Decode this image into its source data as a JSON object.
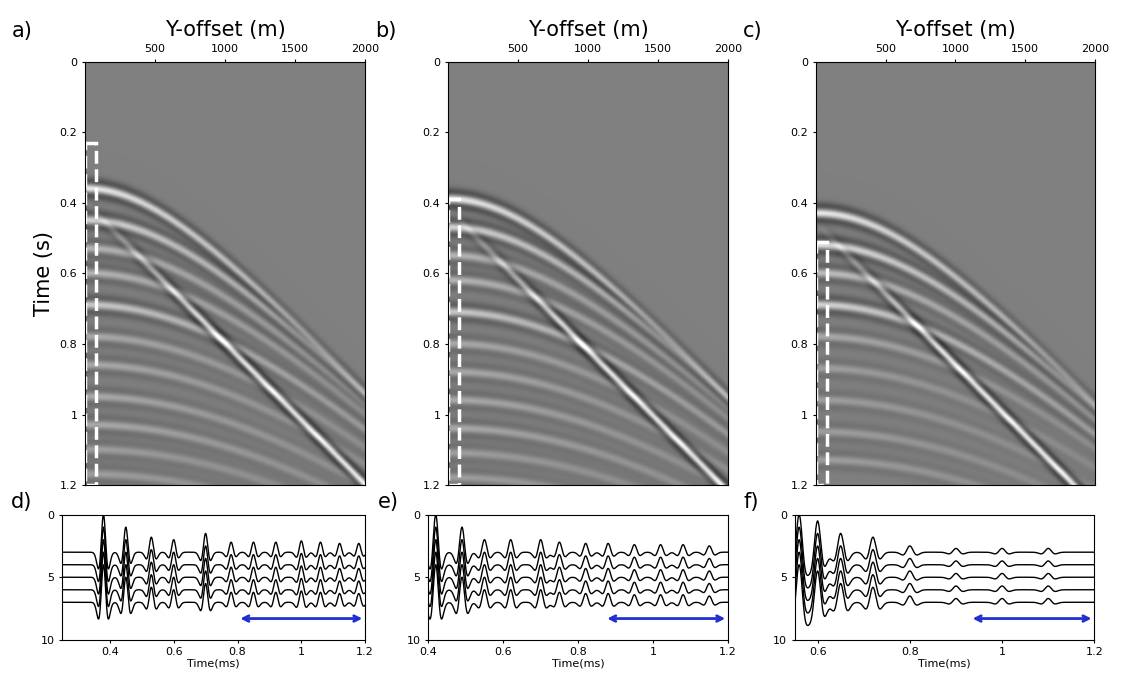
{
  "chart_data": [
    {
      "type": "image",
      "panel": "a)",
      "xlabel": "Y-offset (m)",
      "ylabel": "Time (s)",
      "xlim": [
        0,
        2000
      ],
      "ylim": [
        1.2,
        0
      ],
      "xticks": [
        500,
        1000,
        1500,
        2000
      ],
      "yticks": [
        0,
        0.2,
        0.4,
        0.6,
        0.8,
        1,
        1.2
      ],
      "reflections": [
        {
          "t0": 0.36,
          "v": 2300,
          "amp": 1.0
        },
        {
          "t0": 0.45,
          "v": 2400,
          "amp": 0.8
        },
        {
          "t0": 0.53,
          "v": 2450,
          "amp": 0.5
        },
        {
          "t0": 0.6,
          "v": 2500,
          "amp": 0.5
        },
        {
          "t0": 0.69,
          "v": 2550,
          "amp": 0.7
        },
        {
          "t0": 0.78,
          "v": 2600,
          "amp": 0.4
        },
        {
          "t0": 0.86,
          "v": 2650,
          "amp": 0.4
        },
        {
          "t0": 0.95,
          "v": 2700,
          "amp": 0.4
        },
        {
          "t0": 1.03,
          "v": 2750,
          "amp": 0.4
        },
        {
          "t0": 1.1,
          "v": 2800,
          "amp": 0.3
        },
        {
          "t0": 1.17,
          "v": 2850,
          "amp": 0.3
        }
      ],
      "direct_waves": [
        {
          "t0": 0.4,
          "v": 2500,
          "amp": 1.0
        }
      ],
      "window": {
        "x": [
          0,
          80
        ],
        "t": [
          0.23,
          1.2
        ],
        "color": "#ffffff"
      }
    },
    {
      "type": "image",
      "panel": "b)",
      "xlabel": "Y-offset (m)",
      "xlim": [
        0,
        2000
      ],
      "ylim": [
        1.2,
        0
      ],
      "xticks": [
        500,
        1000,
        1500,
        2000
      ],
      "yticks": [
        0,
        0.2,
        0.4,
        0.6,
        0.8,
        1,
        1.2
      ],
      "reflections": [
        {
          "t0": 0.39,
          "v": 2300,
          "amp": 1.0
        },
        {
          "t0": 0.47,
          "v": 2400,
          "amp": 0.8
        },
        {
          "t0": 0.55,
          "v": 2450,
          "amp": 0.5
        },
        {
          "t0": 0.62,
          "v": 2500,
          "amp": 0.5
        },
        {
          "t0": 0.71,
          "v": 2550,
          "amp": 0.7
        },
        {
          "t0": 0.8,
          "v": 2600,
          "amp": 0.4
        },
        {
          "t0": 0.88,
          "v": 2650,
          "amp": 0.4
        },
        {
          "t0": 0.96,
          "v": 2700,
          "amp": 0.4
        },
        {
          "t0": 1.04,
          "v": 2750,
          "amp": 0.4
        },
        {
          "t0": 1.11,
          "v": 2800,
          "amp": 0.3
        },
        {
          "t0": 1.18,
          "v": 2850,
          "amp": 0.3
        }
      ],
      "direct_waves": [
        {
          "t0": 0.42,
          "v": 2500,
          "amp": 1.0
        }
      ],
      "window": {
        "x": [
          0,
          80
        ],
        "t": [
          0.39,
          1.2
        ],
        "color": "#ffffff"
      }
    },
    {
      "type": "image",
      "panel": "c)",
      "xlabel": "Y-offset (m)",
      "xlim": [
        0,
        2000
      ],
      "ylim": [
        1.2,
        0
      ],
      "xticks": [
        500,
        1000,
        1500,
        2000
      ],
      "yticks": [
        0,
        0.2,
        0.4,
        0.6,
        0.8,
        1,
        1.2
      ],
      "reflections": [
        {
          "t0": 0.43,
          "v": 2300,
          "amp": 1.0
        },
        {
          "t0": 0.52,
          "v": 2400,
          "amp": 0.9
        },
        {
          "t0": 0.6,
          "v": 2450,
          "amp": 0.6
        },
        {
          "t0": 0.69,
          "v": 2500,
          "amp": 0.8
        },
        {
          "t0": 0.78,
          "v": 2600,
          "amp": 0.4
        },
        {
          "t0": 0.87,
          "v": 2650,
          "amp": 0.3
        },
        {
          "t0": 0.96,
          "v": 2700,
          "amp": 0.3
        },
        {
          "t0": 1.05,
          "v": 2750,
          "amp": 0.3
        },
        {
          "t0": 1.13,
          "v": 2800,
          "amp": 0.3
        }
      ],
      "direct_waves": [
        {
          "t0": 0.46,
          "v": 2500,
          "amp": 1.0
        }
      ],
      "window": {
        "x": [
          0,
          80
        ],
        "t": [
          0.51,
          1.2
        ],
        "color": "#ffffff"
      }
    },
    {
      "type": "wiggle",
      "panel": "d)",
      "xlabel": "Time(ms)",
      "color": "#000000",
      "xlim": [
        0.25,
        1.2
      ],
      "ylim": [
        10,
        0
      ],
      "xticks": [
        0.4,
        0.6,
        0.8,
        1,
        1.2
      ],
      "yticks": [
        0,
        5,
        10
      ],
      "trace_offsets": [
        3,
        4,
        5,
        6,
        7
      ],
      "events": [
        [
          0.38,
          3.0
        ],
        [
          0.45,
          2.0
        ],
        [
          0.53,
          1.2
        ],
        [
          0.6,
          1.0
        ],
        [
          0.7,
          1.5
        ],
        [
          0.78,
          0.8
        ],
        [
          0.85,
          0.8
        ],
        [
          0.92,
          0.8
        ],
        [
          1.0,
          0.9
        ],
        [
          1.06,
          0.8
        ],
        [
          1.12,
          0.7
        ],
        [
          1.18,
          0.7
        ]
      ],
      "arrow": {
        "x": [
          0.8,
          1.2
        ],
        "y": 8.3,
        "color": "#1f2fd0"
      }
    },
    {
      "type": "wiggle",
      "panel": "e)",
      "xlabel": "Time(ms)",
      "color": "#000000",
      "xlim": [
        0.4,
        1.2
      ],
      "ylim": [
        10,
        0
      ],
      "xticks": [
        0.4,
        0.6,
        0.8,
        1,
        1.2
      ],
      "yticks": [
        0,
        5,
        10
      ],
      "trace_offsets": [
        3,
        4,
        5,
        6,
        7
      ],
      "events": [
        [
          0.42,
          3.0
        ],
        [
          0.49,
          2.0
        ],
        [
          0.55,
          1.0
        ],
        [
          0.62,
          1.0
        ],
        [
          0.7,
          1.0
        ],
        [
          0.75,
          0.8
        ],
        [
          0.82,
          0.7
        ],
        [
          0.88,
          0.7
        ],
        [
          0.95,
          0.6
        ],
        [
          1.02,
          0.6
        ],
        [
          1.08,
          0.6
        ],
        [
          1.15,
          0.5
        ]
      ],
      "arrow": {
        "x": [
          0.87,
          1.2
        ],
        "y": 8.3,
        "color": "#1f2fd0"
      }
    },
    {
      "type": "wiggle",
      "panel": "f)",
      "xlabel": "Time(ms)",
      "color": "#000000",
      "xlim": [
        0.55,
        1.2
      ],
      "ylim": [
        10,
        0
      ],
      "xticks": [
        0.6,
        0.8,
        1,
        1.2
      ],
      "yticks": [
        0,
        5,
        10
      ],
      "trace_offsets": [
        3,
        4,
        5,
        6,
        7
      ],
      "events": [
        [
          0.56,
          3.0
        ],
        [
          0.6,
          2.5
        ],
        [
          0.65,
          1.5
        ],
        [
          0.72,
          1.2
        ],
        [
          0.8,
          0.5
        ],
        [
          0.9,
          0.3
        ],
        [
          1.0,
          0.3
        ],
        [
          1.1,
          0.3
        ]
      ],
      "arrow": {
        "x": [
          0.93,
          1.2
        ],
        "y": 8.3,
        "color": "#1f2fd0"
      }
    }
  ]
}
